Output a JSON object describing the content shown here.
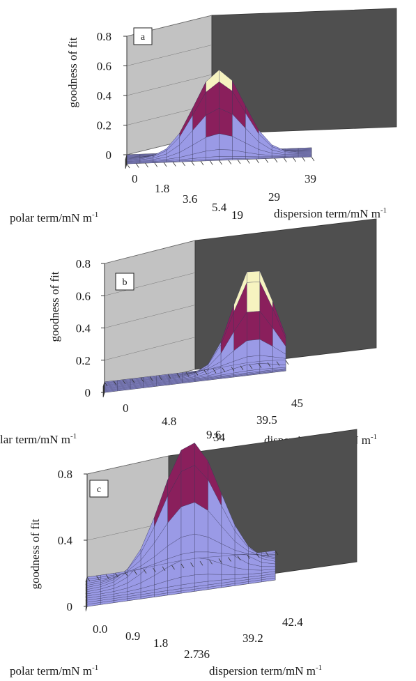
{
  "chart_data": [
    {
      "type": "surface",
      "panel_label": "a",
      "zlabel": "goodness of fit",
      "xlabel": "polar term/mN m",
      "xlabel_sup": "-1",
      "ylabel": "dispersion term/mN m",
      "ylabel_sup": "-1",
      "z_ticks": [
        "0",
        "0.2",
        "0.4",
        "0.6",
        "0.8"
      ],
      "x_ticks": [
        "0",
        "1.8",
        "3.6",
        "5.4"
      ],
      "y_ticks": [
        "19",
        "29",
        "39"
      ],
      "zlim": [
        0,
        0.8
      ],
      "peak_value": 0.58,
      "color_bands": [
        {
          "min": 0,
          "max": 0.2,
          "color": "#9a9ae6"
        },
        {
          "min": 0.2,
          "max": 0.4,
          "color": "#8a1f5c"
        },
        {
          "min": 0.4,
          "max": 0.6,
          "color": "#f6f3c0"
        },
        {
          "min": 0.6,
          "max": 0.8,
          "color": "#b3e3f0"
        }
      ]
    },
    {
      "type": "surface",
      "panel_label": "b",
      "zlabel": "goodness of fit",
      "xlabel": "lar term/mN m",
      "xlabel_sup": "-1",
      "ylabel": "dispersion term/mN m",
      "ylabel_sup": "-1",
      "z_ticks": [
        "0",
        "0.2",
        "0.4",
        "0.6",
        "0.8"
      ],
      "x_ticks": [
        "0",
        "4.8",
        "9.6"
      ],
      "y_ticks": [
        "34",
        "39.5",
        "45"
      ],
      "zlim": [
        0,
        0.8
      ],
      "peak_value": 0.63,
      "color_bands": [
        {
          "min": 0,
          "max": 0.2,
          "color": "#9a9ae6"
        },
        {
          "min": 0.2,
          "max": 0.4,
          "color": "#8a1f5c"
        },
        {
          "min": 0.4,
          "max": 0.6,
          "color": "#f6f3c0"
        },
        {
          "min": 0.6,
          "max": 0.8,
          "color": "#b3e3f0"
        }
      ]
    },
    {
      "type": "surface",
      "panel_label": "c",
      "zlabel": "goodness of fit",
      "xlabel": "polar term/mN m",
      "xlabel_sup": "-1",
      "ylabel": "dispersion term/mN m",
      "ylabel_sup": "-1",
      "z_ticks": [
        "0",
        "0.4",
        "0.8"
      ],
      "x_ticks": [
        "0.0",
        "0.9",
        "1.8",
        "2.7"
      ],
      "y_ticks": [
        "36",
        "39.2",
        "42.4"
      ],
      "zlim": [
        0,
        0.8
      ],
      "peak_value": 0.8,
      "color_bands": [
        {
          "min": 0,
          "max": 0.4,
          "color": "#9a9ae6"
        },
        {
          "min": 0.4,
          "max": 0.8,
          "color": "#8a1f5c"
        }
      ]
    }
  ]
}
